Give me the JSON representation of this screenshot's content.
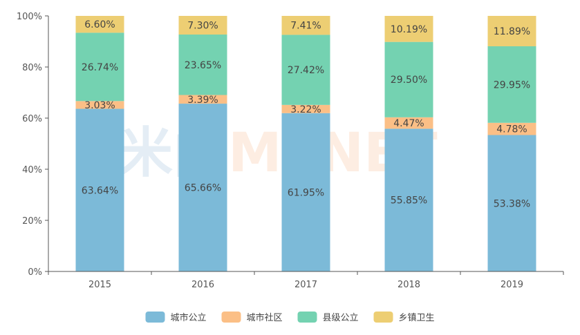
{
  "watermark": {
    "left": "米内",
    "right": "MENET"
  },
  "chart_data": {
    "type": "bar",
    "stacked": true,
    "categories": [
      "2015",
      "2016",
      "2017",
      "2018",
      "2019"
    ],
    "ylim": [
      0,
      100
    ],
    "yticks": [
      "0%",
      "20%",
      "40%",
      "60%",
      "80%",
      "100%"
    ],
    "grid": false,
    "legend_position": "bottom",
    "series": [
      {
        "name": "城市公立",
        "color": "#7cbad8",
        "values": [
          63.64,
          65.66,
          61.95,
          55.85,
          53.38
        ],
        "labels": [
          "63.64%",
          "65.66%",
          "61.95%",
          "55.85%",
          "53.38%"
        ]
      },
      {
        "name": "城市社区",
        "color": "#fbbf86",
        "values": [
          3.03,
          3.39,
          3.22,
          4.47,
          4.78
        ],
        "labels": [
          "3.03%",
          "3.39%",
          "3.22%",
          "4.47%",
          "4.78%"
        ]
      },
      {
        "name": "县级公立",
        "color": "#74d2b1",
        "values": [
          26.74,
          23.65,
          27.42,
          29.5,
          29.95
        ],
        "labels": [
          "26.74%",
          "23.65%",
          "27.42%",
          "29.50%",
          "29.95%"
        ]
      },
      {
        "name": "乡镇卫生",
        "color": "#edce73",
        "values": [
          6.6,
          7.3,
          7.41,
          10.19,
          11.89
        ],
        "labels": [
          "6.60%",
          "7.30%",
          "7.41%",
          "10.19%",
          "11.89%"
        ]
      }
    ]
  }
}
